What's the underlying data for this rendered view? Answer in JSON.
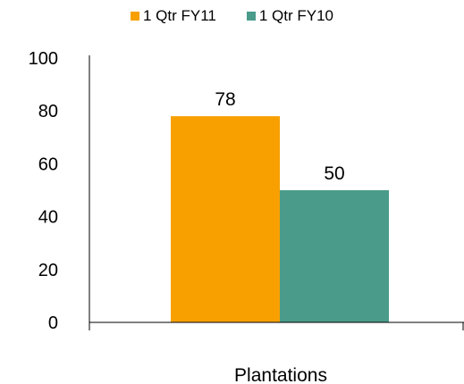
{
  "chart_data": {
    "type": "bar",
    "categories": [
      "Plantations"
    ],
    "series": [
      {
        "name": "1 Qtr FY11",
        "values": [
          78
        ],
        "color": "#F7A000"
      },
      {
        "name": "1 Qtr FY10",
        "values": [
          50
        ],
        "color": "#4A9B8A"
      }
    ],
    "ylim": [
      0,
      100
    ],
    "yticks": [
      0,
      20,
      40,
      60,
      80,
      100
    ],
    "data_labels": [
      "78",
      "50"
    ],
    "legend_position": "top",
    "grid": false
  }
}
